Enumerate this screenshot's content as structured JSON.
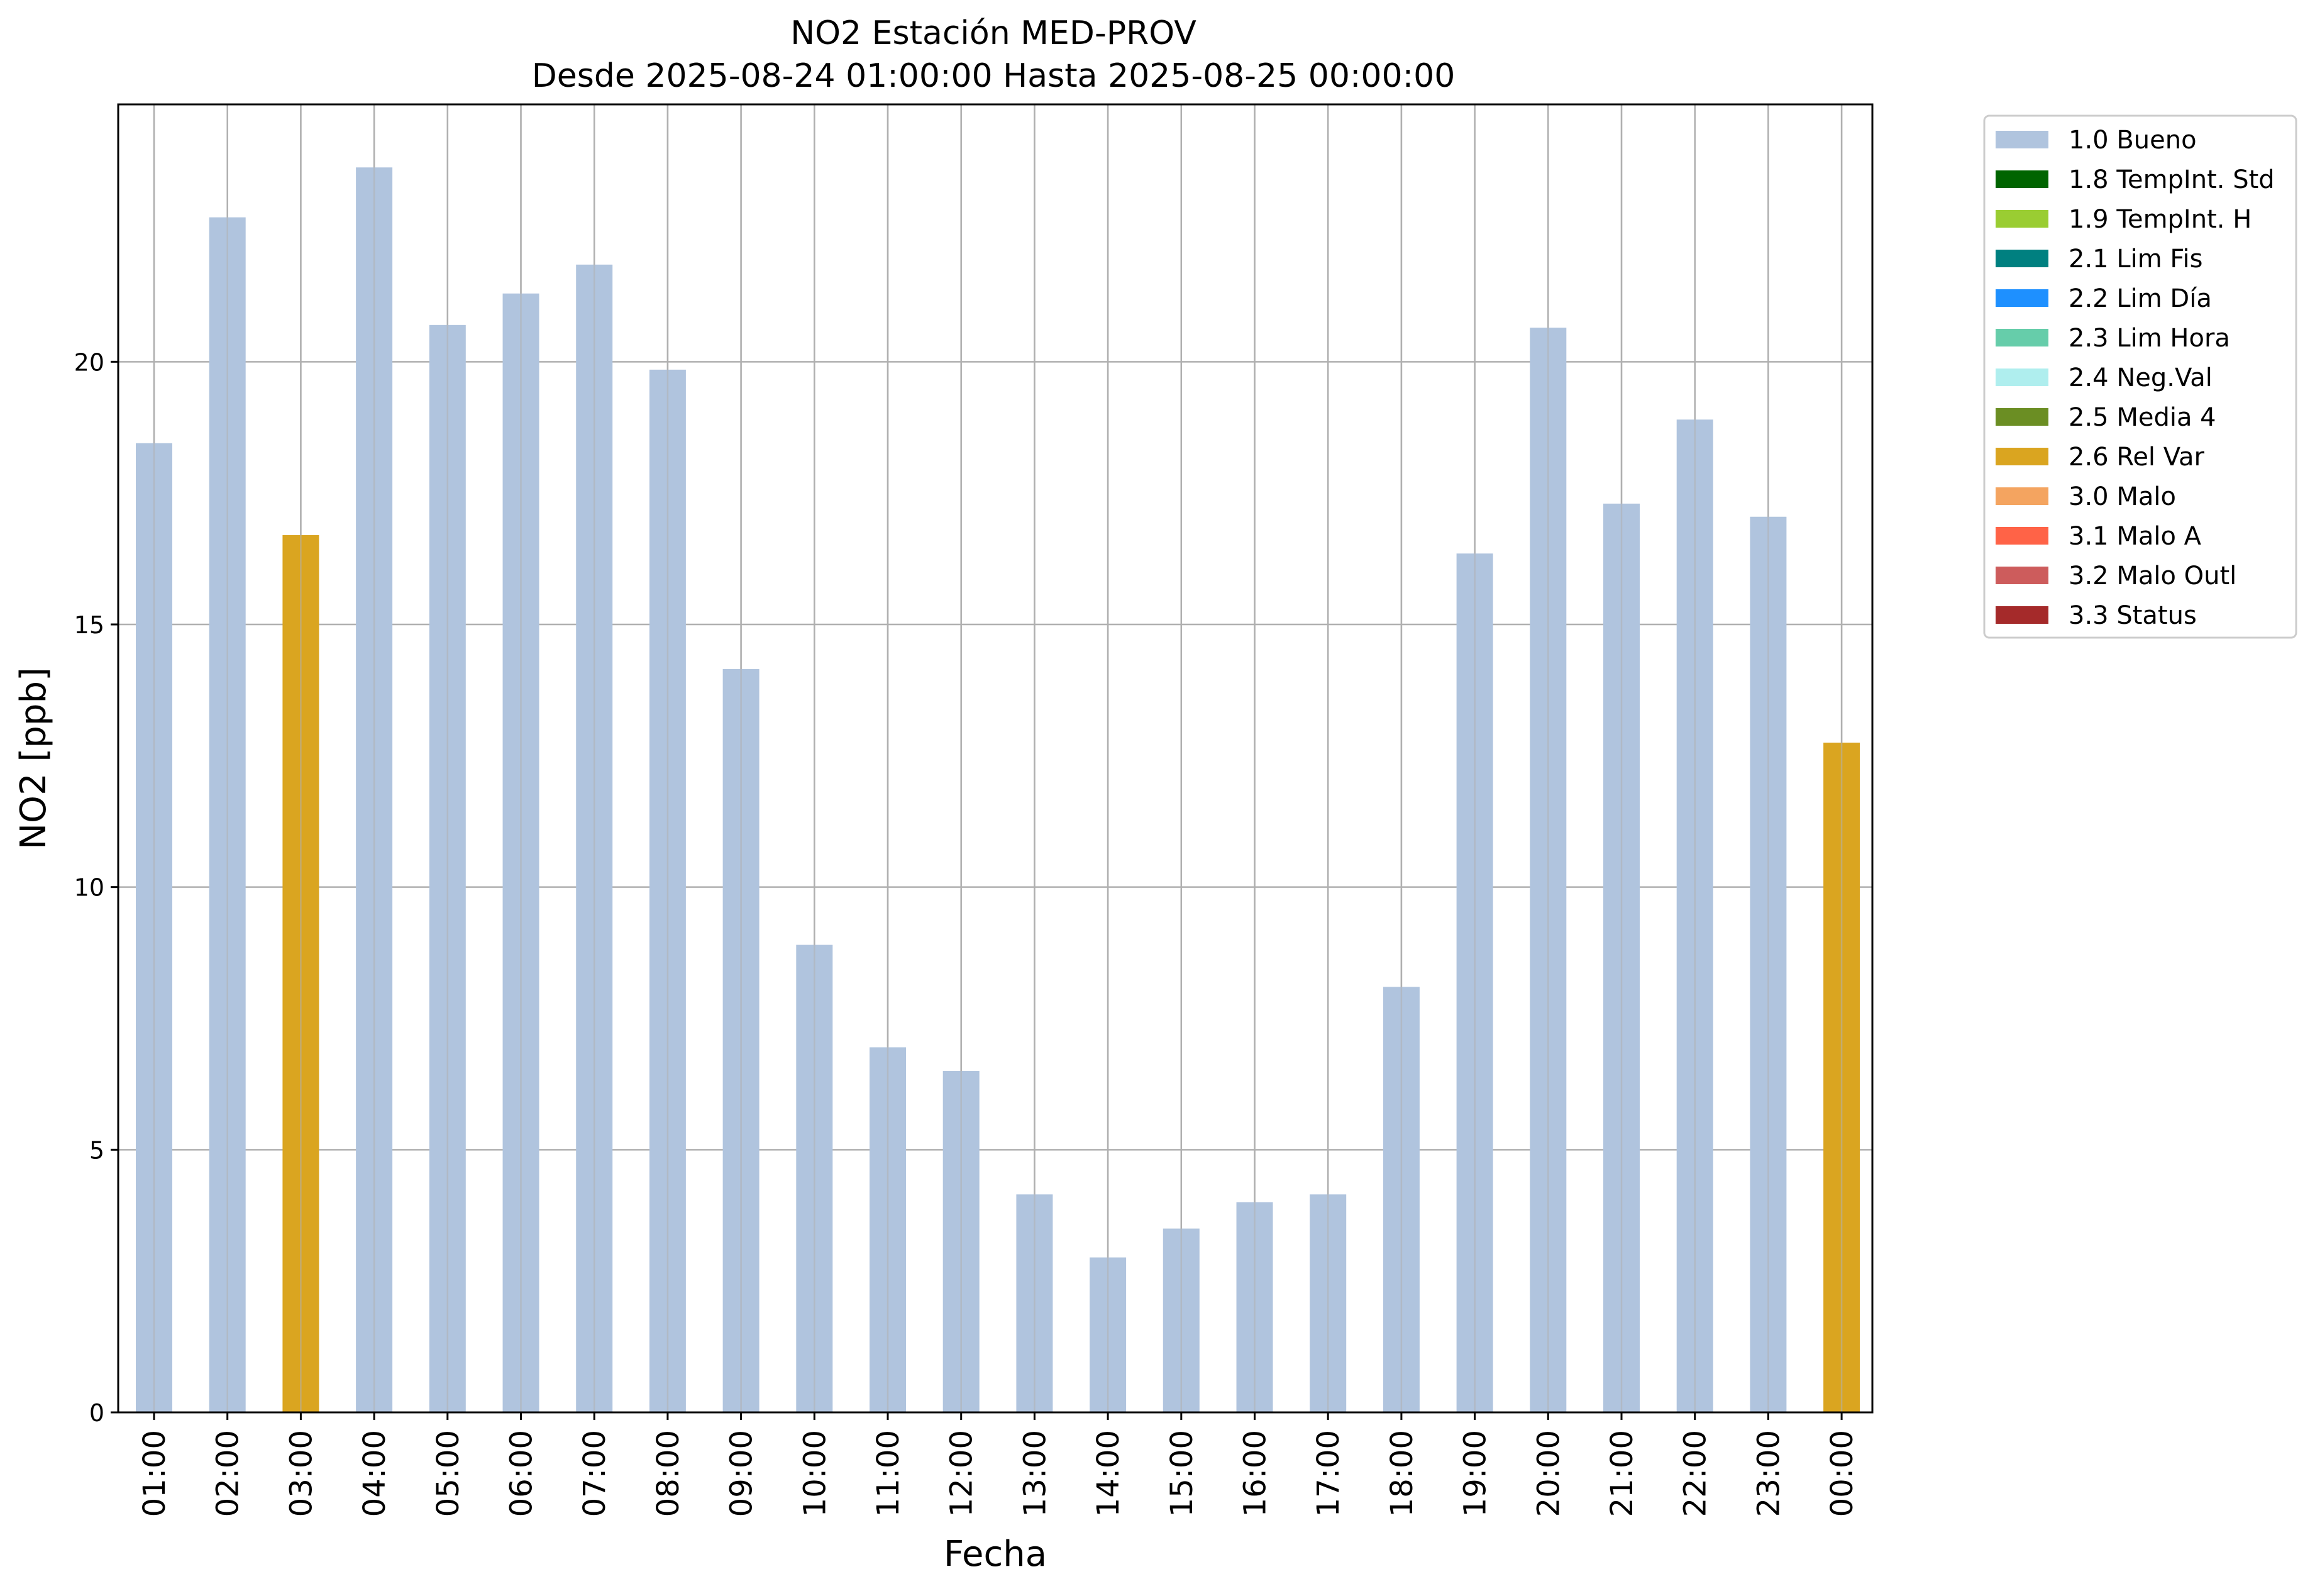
{
  "chart_data": {
    "type": "bar",
    "title": "NO2 Estación MED-PROV",
    "subtitle": "Desde 2025-08-24 01:00:00 Hasta 2025-08-25 00:00:00",
    "xlabel": "Fecha",
    "ylabel": "NO2 [ppb]",
    "ylim": [
      0,
      24.9
    ],
    "yticks": [
      0,
      5,
      10,
      15,
      20
    ],
    "grid": true,
    "legend_position": "outside-top-right",
    "categories": [
      "01:00",
      "02:00",
      "03:00",
      "04:00",
      "05:00",
      "06:00",
      "07:00",
      "08:00",
      "09:00",
      "10:00",
      "11:00",
      "12:00",
      "13:00",
      "14:00",
      "15:00",
      "16:00",
      "17:00",
      "18:00",
      "19:00",
      "20:00",
      "21:00",
      "22:00",
      "23:00",
      "00:00"
    ],
    "values": [
      18.45,
      22.75,
      16.7,
      23.7,
      20.7,
      21.3,
      21.85,
      19.85,
      14.15,
      8.9,
      6.95,
      6.5,
      4.15,
      2.95,
      3.5,
      4.0,
      4.15,
      8.1,
      16.35,
      20.65,
      17.3,
      18.9,
      17.05,
      12.75
    ],
    "flags": [
      "1.0 Bueno",
      "1.0 Bueno",
      "2.6 Rel Var",
      "1.0 Bueno",
      "1.0 Bueno",
      "1.0 Bueno",
      "1.0 Bueno",
      "1.0 Bueno",
      "1.0 Bueno",
      "1.0 Bueno",
      "1.0 Bueno",
      "1.0 Bueno",
      "1.0 Bueno",
      "1.0 Bueno",
      "1.0 Bueno",
      "1.0 Bueno",
      "1.0 Bueno",
      "1.0 Bueno",
      "1.0 Bueno",
      "1.0 Bueno",
      "1.0 Bueno",
      "1.0 Bueno",
      "1.0 Bueno",
      "2.6 Rel Var"
    ],
    "legend": [
      {
        "label": "1.0 Bueno",
        "color": "#b0c4de"
      },
      {
        "label": "1.8 TempInt. Std",
        "color": "#006400"
      },
      {
        "label": "1.9 TempInt. H",
        "color": "#9acd32"
      },
      {
        "label": "2.1 Lim Fis",
        "color": "#008080"
      },
      {
        "label": "2.2 Lim Día",
        "color": "#1e90ff"
      },
      {
        "label": "2.3 Lim Hora",
        "color": "#66cdaa"
      },
      {
        "label": "2.4 Neg.Val",
        "color": "#afeeee"
      },
      {
        "label": "2.5 Media 4",
        "color": "#6b8e23"
      },
      {
        "label": "2.6 Rel Var",
        "color": "#daa520"
      },
      {
        "label": "3.0 Malo",
        "color": "#f4a460"
      },
      {
        "label": "3.1 Malo A",
        "color": "#ff6347"
      },
      {
        "label": "3.2 Malo Outl",
        "color": "#cd5c5c"
      },
      {
        "label": "3.3 Status",
        "color": "#a52a2a"
      }
    ]
  }
}
